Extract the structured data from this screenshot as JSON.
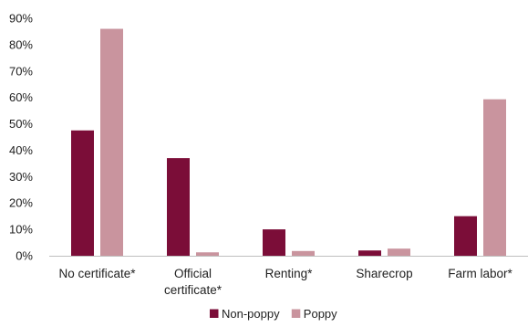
{
  "chart_data": {
    "type": "bar",
    "title": "",
    "xlabel": "",
    "ylabel": "",
    "ylim": [
      0,
      90
    ],
    "yticks": [
      "0%",
      "10%",
      "20%",
      "30%",
      "40%",
      "50%",
      "60%",
      "70%",
      "80%",
      "90%"
    ],
    "categories": [
      [
        "No certificate*"
      ],
      [
        "Official",
        "certificate*"
      ],
      [
        "Renting*"
      ],
      [
        "Sharecrop"
      ],
      [
        "Farm labor*"
      ]
    ],
    "series": [
      {
        "name": "Non-poppy",
        "color": "#7B0D38",
        "values": [
          47.5,
          37,
          10,
          2,
          15
        ]
      },
      {
        "name": "Poppy",
        "color": "#C9949E",
        "values": [
          86,
          1.3,
          1.8,
          2.7,
          59.3
        ]
      }
    ],
    "grid": false,
    "legend": "bottom-center"
  }
}
